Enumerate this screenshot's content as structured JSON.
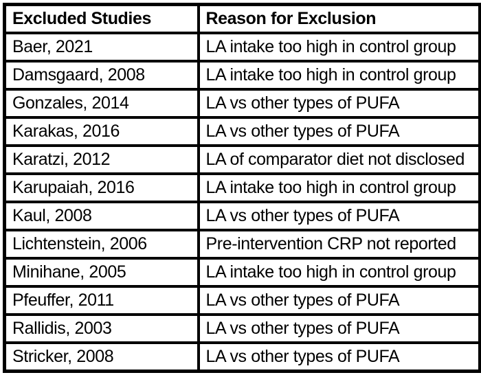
{
  "colors": {
    "border": "#000000",
    "text": "#000000",
    "background": "#ffffff"
  },
  "table": {
    "headers": {
      "study": "Excluded Studies",
      "reason": "Reason for Exclusion"
    },
    "rows": [
      {
        "study": "Baer, 2021",
        "reason": "LA intake too high in control group"
      },
      {
        "study": "Damsgaard, 2008",
        "reason": "LA intake too high in control group"
      },
      {
        "study": "Gonzales, 2014",
        "reason": "LA vs other types of PUFA"
      },
      {
        "study": "Karakas, 2016",
        "reason": "LA vs other types of PUFA"
      },
      {
        "study": "Karatzi, 2012",
        "reason": "LA of comparator diet not disclosed"
      },
      {
        "study": "Karupaiah, 2016",
        "reason": "LA intake too high in control group"
      },
      {
        "study": "Kaul, 2008",
        "reason": "LA vs other types of PUFA"
      },
      {
        "study": "Lichtenstein, 2006",
        "reason": "Pre-intervention CRP not reported"
      },
      {
        "study": "Minihane, 2005",
        "reason": "LA intake too high in control group"
      },
      {
        "study": "Pfeuffer, 2011",
        "reason": "LA vs other types of PUFA"
      },
      {
        "study": "Rallidis, 2003",
        "reason": "LA vs other types of PUFA"
      },
      {
        "study": "Stricker, 2008",
        "reason": "LA vs other types of PUFA"
      }
    ]
  }
}
